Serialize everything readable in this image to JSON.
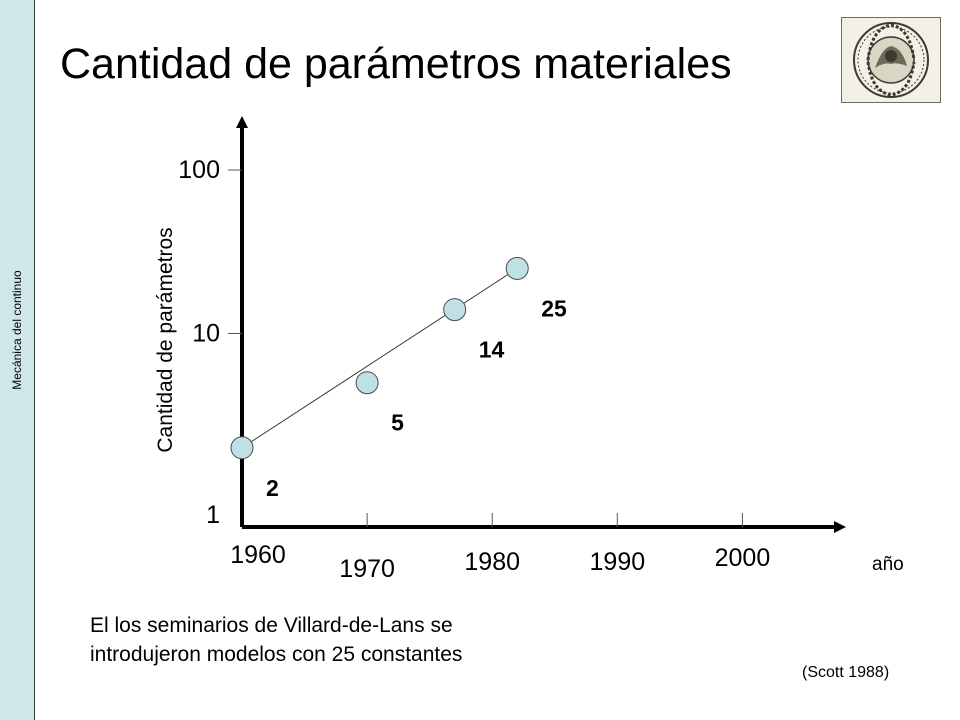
{
  "sidebar": {
    "label": "Mecánica del continuo"
  },
  "slide": {
    "title": "Cantidad de parámetros materiales",
    "caption": "El los seminarios de Villard-de-Lans se\nintrodujeron modelos con 25 constantes",
    "source": "(Scott 1988)"
  },
  "logo": {
    "type": "university-seal",
    "colors": {
      "paper": "#f3f1e7",
      "ink": "#3b3a30"
    }
  },
  "colors": {
    "sidebar": "#cfe7ea",
    "marker_fill": "#bfe1e6",
    "marker_stroke": "#4a4a4a",
    "axis": "#000000"
  },
  "chart_data": {
    "type": "scatter",
    "title": "",
    "xlabel": "año",
    "ylabel": "Cantidad de parámetros",
    "yscale": "log",
    "xlim": [
      1960,
      2005
    ],
    "ylim": [
      1,
      100
    ],
    "grid": false,
    "x_ticks": [
      1960,
      1970,
      1980,
      1990,
      2000
    ],
    "y_ticks": [
      1,
      10,
      100
    ],
    "points": [
      {
        "x": 1960,
        "y": 2,
        "label": "2"
      },
      {
        "x": 1970,
        "y": 5,
        "label": "5"
      },
      {
        "x": 1977,
        "y": 14,
        "label": "14"
      },
      {
        "x": 1982,
        "y": 25,
        "label": "25"
      }
    ],
    "trendline": true
  }
}
